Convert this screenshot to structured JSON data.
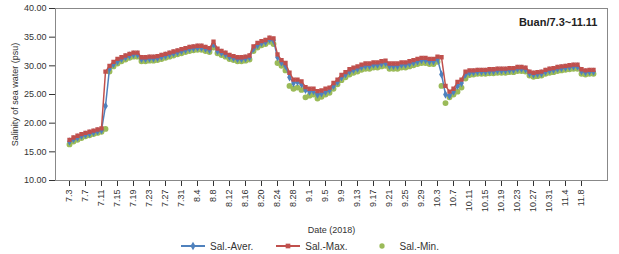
{
  "chart_data": {
    "type": "line",
    "title": "Buan/7.3~11.11",
    "x_label": "Date (2018)",
    "y_label": "Salinity of sea water (psu)",
    "categories": [
      "7.3",
      null,
      null,
      null,
      "7.7",
      null,
      null,
      null,
      "7.11",
      null,
      null,
      null,
      "7.15",
      null,
      null,
      null,
      "7.19",
      null,
      null,
      null,
      "7.23",
      null,
      null,
      null,
      "7.27",
      null,
      null,
      null,
      "7.31",
      null,
      null,
      null,
      "8.4",
      null,
      null,
      null,
      "8.8",
      null,
      null,
      null,
      "8.12",
      null,
      null,
      null,
      "8.16",
      null,
      null,
      null,
      "8.20",
      null,
      null,
      null,
      "8.24",
      null,
      null,
      null,
      "8.28",
      null,
      null,
      null,
      "9.1",
      null,
      null,
      null,
      "9.5",
      null,
      null,
      null,
      "9.9",
      null,
      null,
      null,
      "9.13",
      null,
      null,
      null,
      "9.17",
      null,
      null,
      null,
      "9.21",
      null,
      null,
      null,
      "9.25",
      null,
      null,
      null,
      "9.29",
      null,
      null,
      null,
      "10.3",
      null,
      null,
      null,
      "10.7",
      null,
      null,
      null,
      "10.11",
      null,
      null,
      null,
      "10.15",
      null,
      null,
      null,
      "10.19",
      null,
      null,
      null,
      "10.23",
      null,
      null,
      null,
      "10.27",
      null,
      null,
      null,
      "10.31",
      null,
      null,
      null,
      "11.4",
      null,
      null,
      null,
      "11.8",
      null,
      null,
      null
    ],
    "ylim": [
      10,
      40
    ],
    "yticks": [
      {
        "value": 10,
        "label": "10.00"
      },
      {
        "value": 15,
        "label": "15.00"
      },
      {
        "value": 20,
        "label": "20.00"
      },
      {
        "value": 25,
        "label": "25.00"
      },
      {
        "value": 30,
        "label": "30.00"
      },
      {
        "value": 35,
        "label": "35.00"
      },
      {
        "value": 40,
        "label": "40.00"
      }
    ],
    "grid": false,
    "legend": "bottom",
    "series": [
      {
        "name": "Sal.-Aver.",
        "color": "#4f81bd",
        "type": "line",
        "marker": "diamond",
        "values": [
          16.8,
          17.2,
          17.5,
          17.8,
          18.0,
          18.2,
          18.4,
          18.6,
          18.8,
          23.0,
          29.5,
          30.3,
          30.8,
          31.2,
          31.5,
          31.8,
          32.0,
          32.0,
          31.2,
          31.2,
          31.3,
          31.3,
          31.4,
          31.6,
          31.8,
          32.0,
          32.2,
          32.4,
          32.6,
          32.8,
          33.0,
          33.1,
          33.2,
          33.2,
          33.0,
          32.8,
          33.8,
          32.6,
          32.3,
          32.0,
          31.6,
          31.4,
          31.2,
          31.2,
          31.3,
          31.5,
          33.0,
          33.6,
          34.0,
          34.2,
          34.6,
          34.4,
          31.5,
          30.6,
          30.0,
          28.0,
          27.0,
          27.2,
          26.8,
          25.8,
          25.5,
          25.6,
          25.0,
          25.2,
          25.5,
          25.8,
          26.5,
          27.2,
          28.0,
          28.5,
          29.0,
          29.3,
          29.5,
          29.8,
          30.0,
          30.0,
          30.2,
          30.2,
          30.4,
          30.5,
          30.0,
          30.0,
          30.0,
          30.2,
          30.2,
          30.4,
          30.6,
          30.8,
          31.0,
          31.0,
          30.8,
          30.8,
          31.2,
          28.5,
          25.0,
          24.8,
          25.5,
          26.5,
          27.0,
          28.5,
          28.8,
          28.9,
          29.0,
          29.0,
          29.0,
          29.1,
          29.1,
          29.2,
          29.2,
          29.2,
          29.3,
          29.3,
          29.5,
          29.5,
          29.4,
          28.7,
          28.5,
          28.6,
          28.7,
          29.0,
          29.2,
          29.3,
          29.5,
          29.6,
          29.7,
          29.8,
          29.9,
          29.9,
          29.1,
          28.9,
          29.0,
          29.0
        ]
      },
      {
        "name": "Sal.-Max.",
        "color": "#c0504d",
        "type": "line",
        "marker": "square",
        "values": [
          17.1,
          17.5,
          17.8,
          18.1,
          18.3,
          18.5,
          18.7,
          18.9,
          19.1,
          29.0,
          30.0,
          30.7,
          31.2,
          31.5,
          31.8,
          32.1,
          32.3,
          32.3,
          31.5,
          31.5,
          31.6,
          31.6,
          31.7,
          31.9,
          32.1,
          32.3,
          32.5,
          32.7,
          32.9,
          33.1,
          33.3,
          33.4,
          33.5,
          33.5,
          33.3,
          33.1,
          34.2,
          33.0,
          32.6,
          32.3,
          31.9,
          31.7,
          31.5,
          31.5,
          31.6,
          31.8,
          33.4,
          34.0,
          34.3,
          34.5,
          34.9,
          34.8,
          32.0,
          31.0,
          30.5,
          28.8,
          27.6,
          27.6,
          27.3,
          26.3,
          26.0,
          26.0,
          25.6,
          25.7,
          26.0,
          26.2,
          27.0,
          27.6,
          28.4,
          28.9,
          29.4,
          29.7,
          29.9,
          30.2,
          30.4,
          30.4,
          30.6,
          30.6,
          30.8,
          30.9,
          30.4,
          30.4,
          30.4,
          30.6,
          30.6,
          30.8,
          31.0,
          31.2,
          31.4,
          31.4,
          31.2,
          31.2,
          31.6,
          31.5,
          26.5,
          25.5,
          26.0,
          27.2,
          27.6,
          29.0,
          29.2,
          29.2,
          29.3,
          29.3,
          29.3,
          29.4,
          29.4,
          29.5,
          29.5,
          29.5,
          29.6,
          29.6,
          29.8,
          29.8,
          29.7,
          29.0,
          28.8,
          28.9,
          29.0,
          29.3,
          29.5,
          29.6,
          29.8,
          29.9,
          30.0,
          30.1,
          30.2,
          30.2,
          29.4,
          29.2,
          29.3,
          29.3
        ]
      },
      {
        "name": "Sal.-Min.",
        "color": "#9bbb59",
        "type": "scatter",
        "marker": "circle",
        "values": [
          16.3,
          16.8,
          17.1,
          17.4,
          17.7,
          17.9,
          18.1,
          18.3,
          18.5,
          19.0,
          29.0,
          29.9,
          30.4,
          30.8,
          31.1,
          31.4,
          31.6,
          31.6,
          30.8,
          30.8,
          30.9,
          30.9,
          31.0,
          31.2,
          31.4,
          31.6,
          31.8,
          32.0,
          32.2,
          32.4,
          32.6,
          32.7,
          32.8,
          32.8,
          32.6,
          32.4,
          33.2,
          32.2,
          31.9,
          31.6,
          31.2,
          31.0,
          30.8,
          30.8,
          30.9,
          31.1,
          32.6,
          33.2,
          33.6,
          33.8,
          34.2,
          33.8,
          30.5,
          30.0,
          29.2,
          26.5,
          26.0,
          26.2,
          25.8,
          24.5,
          24.8,
          25.0,
          24.3,
          24.6,
          25.0,
          25.3,
          26.0,
          26.8,
          27.5,
          28.0,
          28.5,
          28.8,
          29.0,
          29.3,
          29.5,
          29.5,
          29.7,
          29.7,
          29.9,
          30.0,
          29.5,
          29.5,
          29.5,
          29.7,
          29.7,
          29.9,
          30.1,
          30.3,
          30.5,
          30.5,
          30.3,
          30.3,
          30.7,
          26.5,
          23.5,
          24.5,
          25.0,
          25.5,
          26.2,
          27.8,
          28.4,
          28.5,
          28.6,
          28.6,
          28.6,
          28.7,
          28.7,
          28.8,
          28.8,
          28.8,
          28.9,
          28.9,
          29.1,
          29.1,
          29.0,
          28.3,
          28.1,
          28.2,
          28.3,
          28.6,
          28.8,
          28.9,
          29.1,
          29.2,
          29.3,
          29.4,
          29.5,
          29.5,
          28.6,
          28.5,
          28.6,
          28.6
        ]
      }
    ]
  }
}
